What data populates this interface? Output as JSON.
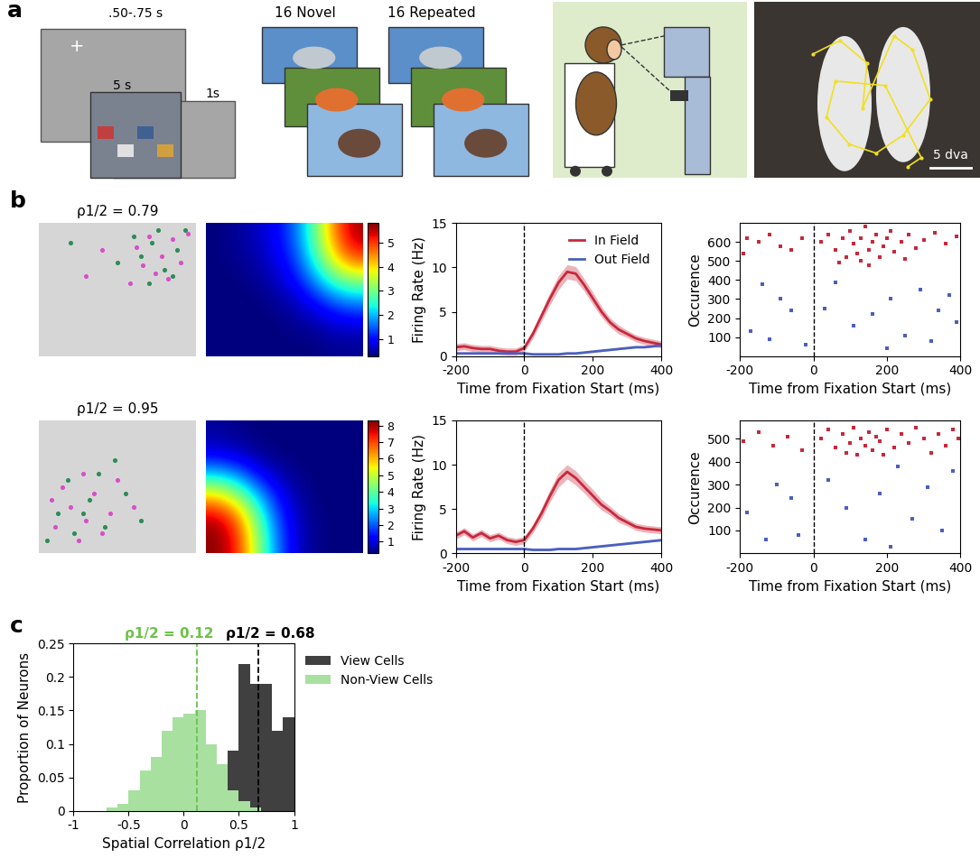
{
  "panel_a": {
    "label": "a",
    "fixation_cross": "+",
    "durations": [
      ".50-.75 s",
      "5 s",
      "1s"
    ],
    "sets": [
      "16 Novel",
      "16 Repeated"
    ],
    "scale_bar": "5 dva"
  },
  "chart_data": [
    {
      "type": "scatter",
      "panel_label": "b",
      "title": "ρ1/2 = 0.79",
      "tick_labels": false,
      "xlim": [
        0,
        1
      ],
      "ylim": [
        0,
        1
      ],
      "series": [
        {
          "color": "#d84fc8",
          "x": [
            0.62,
            0.7,
            0.78,
            0.85,
            0.9,
            0.74,
            0.66,
            0.95,
            0.58,
            0.82,
            0.4,
            0.3
          ],
          "y": [
            0.82,
            0.9,
            0.75,
            0.88,
            0.7,
            0.62,
            0.68,
            0.92,
            0.55,
            0.58,
            0.8,
            0.6
          ]
        },
        {
          "color": "#2e8b57",
          "x": [
            0.65,
            0.72,
            0.8,
            0.88,
            0.93,
            0.7,
            0.6,
            0.85,
            0.76,
            0.5,
            0.2
          ],
          "y": [
            0.75,
            0.85,
            0.65,
            0.8,
            0.95,
            0.55,
            0.9,
            0.6,
            0.95,
            0.7,
            0.85
          ]
        }
      ]
    },
    {
      "type": "heatmap",
      "tick_labels": false,
      "cells": [
        [
          0.3,
          0.4,
          0.6,
          0.9,
          1.5,
          2.8,
          4.5,
          5.6
        ],
        [
          0.3,
          0.4,
          0.5,
          0.8,
          1.3,
          2.5,
          4.0,
          5.0
        ],
        [
          0.3,
          0.3,
          0.4,
          0.6,
          1.0,
          1.8,
          2.8,
          3.3
        ],
        [
          0.3,
          0.3,
          0.3,
          0.4,
          0.6,
          1.0,
          1.5,
          1.8
        ],
        [
          0.3,
          0.3,
          0.3,
          0.3,
          0.4,
          0.5,
          0.7,
          0.8
        ],
        [
          0.3,
          0.3,
          0.3,
          0.3,
          0.3,
          0.3,
          0.4,
          0.4
        ]
      ],
      "colorbar_range": [
        0.3,
        5.8
      ],
      "colorbar_ticks": [
        1,
        2,
        3,
        4,
        5
      ]
    },
    {
      "type": "line",
      "xlabel": "Time from Fixation Start (ms)",
      "ylabel": "Firing Rate (Hz)",
      "x": [
        -200,
        -175,
        -150,
        -125,
        -100,
        -75,
        -50,
        -25,
        0,
        25,
        50,
        75,
        100,
        125,
        150,
        175,
        200,
        225,
        250,
        275,
        300,
        325,
        350,
        375,
        400
      ],
      "series": [
        {
          "name": "In Field",
          "color": "#c8283c",
          "values": [
            1.0,
            1.1,
            0.9,
            0.8,
            0.8,
            0.6,
            0.5,
            0.5,
            0.9,
            2.5,
            4.5,
            6.5,
            8.3,
            9.5,
            9.3,
            8.0,
            6.5,
            5.0,
            3.8,
            3.0,
            2.5,
            2.0,
            1.7,
            1.5,
            1.3
          ],
          "error": [
            0.4,
            0.4,
            0.4,
            0.4,
            0.4,
            0.4,
            0.4,
            0.4,
            0.4,
            0.5,
            0.6,
            0.7,
            0.8,
            0.8,
            0.8,
            0.7,
            0.7,
            0.6,
            0.5,
            0.5,
            0.4,
            0.4,
            0.4,
            0.4,
            0.4
          ]
        },
        {
          "name": "Out Field",
          "color": "#4b5fc0",
          "values": [
            0.3,
            0.3,
            0.3,
            0.3,
            0.3,
            0.3,
            0.3,
            0.3,
            0.3,
            0.2,
            0.2,
            0.2,
            0.2,
            0.3,
            0.3,
            0.4,
            0.5,
            0.6,
            0.7,
            0.8,
            0.9,
            1.0,
            1.0,
            1.1,
            1.2
          ],
          "error": [
            0.1,
            0.1,
            0.1,
            0.1,
            0.1,
            0.1,
            0.1,
            0.1,
            0.1,
            0.1,
            0.1,
            0.1,
            0.1,
            0.1,
            0.1,
            0.1,
            0.1,
            0.1,
            0.1,
            0.1,
            0.1,
            0.1,
            0.1,
            0.1,
            0.1
          ]
        }
      ],
      "fixation_start": 0,
      "xlim": [
        -200,
        400
      ],
      "xticks": [
        -200,
        0,
        200,
        400
      ],
      "ylim": [
        0,
        15
      ],
      "yticks": [
        0,
        5,
        10,
        15
      ],
      "legend": "upper right"
    },
    {
      "type": "raster",
      "xlabel": "Time from Fixation Start (ms)",
      "ylabel": "Occurence",
      "series": [
        {
          "name": "In Field",
          "color": "#c8283c",
          "x": [
            -180,
            -150,
            -120,
            -90,
            -60,
            -30,
            -190,
            20,
            40,
            60,
            80,
            100,
            110,
            120,
            130,
            140,
            150,
            160,
            170,
            180,
            190,
            200,
            210,
            220,
            240,
            260,
            280,
            300,
            330,
            360,
            390,
            130,
            90,
            250,
            150,
            70
          ],
          "y": [
            620,
            600,
            640,
            580,
            560,
            620,
            540,
            600,
            640,
            560,
            620,
            660,
            590,
            540,
            620,
            680,
            560,
            600,
            640,
            520,
            580,
            620,
            660,
            550,
            600,
            640,
            570,
            610,
            650,
            590,
            630,
            500,
            520,
            510,
            480,
            490
          ]
        },
        {
          "name": "Out Field",
          "color": "#4b5fc0",
          "x": [
            -170,
            -120,
            -60,
            -20,
            30,
            60,
            110,
            160,
            210,
            250,
            290,
            320,
            340,
            370,
            390,
            -140,
            -90,
            200
          ],
          "y": [
            130,
            90,
            240,
            60,
            250,
            390,
            160,
            220,
            300,
            110,
            350,
            80,
            240,
            320,
            180,
            380,
            300,
            40
          ]
        }
      ],
      "fixation_start": 0,
      "xlim": [
        -200,
        400
      ],
      "xticks": [
        -200,
        0,
        200,
        400
      ],
      "ylim": [
        0,
        700
      ],
      "yticks": [
        100,
        200,
        300,
        400,
        500,
        600
      ]
    },
    {
      "type": "scatter",
      "title": "ρ1/2 = 0.95",
      "tick_labels": false,
      "xlim": [
        0,
        1
      ],
      "ylim": [
        0,
        1
      ],
      "series": [
        {
          "color": "#d84fc8",
          "x": [
            0.1,
            0.2,
            0.3,
            0.15,
            0.35,
            0.25,
            0.45,
            0.5,
            0.4,
            0.08,
            0.6,
            0.28
          ],
          "y": [
            0.2,
            0.35,
            0.25,
            0.5,
            0.45,
            0.1,
            0.3,
            0.55,
            0.15,
            0.4,
            0.35,
            0.6
          ]
        },
        {
          "color": "#2e8b57",
          "x": [
            0.12,
            0.22,
            0.32,
            0.42,
            0.18,
            0.38,
            0.05,
            0.55,
            0.28,
            0.48,
            0.65
          ],
          "y": [
            0.3,
            0.15,
            0.4,
            0.2,
            0.55,
            0.6,
            0.1,
            0.45,
            0.3,
            0.7,
            0.25
          ]
        }
      ]
    },
    {
      "type": "heatmap",
      "tick_labels": false,
      "cells": [
        [
          0.5,
          0.4,
          0.3,
          0.3,
          0.3,
          0.3,
          0.3,
          0.3
        ],
        [
          1.0,
          0.8,
          0.5,
          0.3,
          0.3,
          0.3,
          0.3,
          0.3
        ],
        [
          3.0,
          2.5,
          1.5,
          0.8,
          0.4,
          0.3,
          0.3,
          0.3
        ],
        [
          6.0,
          5.0,
          3.2,
          1.6,
          0.7,
          0.3,
          0.3,
          0.3
        ],
        [
          8.0,
          7.0,
          4.5,
          2.2,
          0.9,
          0.4,
          0.3,
          0.3
        ],
        [
          8.2,
          7.5,
          5.0,
          2.5,
          1.0,
          0.4,
          0.3,
          0.3
        ]
      ],
      "colorbar_range": [
        0.3,
        8.3
      ],
      "colorbar_ticks": [
        1,
        2,
        3,
        4,
        5,
        6,
        7,
        8
      ]
    },
    {
      "type": "line",
      "xlabel": "Time from Fixation Start (ms)",
      "ylabel": "Firing Rate (Hz)",
      "x": [
        -200,
        -175,
        -150,
        -125,
        -100,
        -75,
        -50,
        -25,
        0,
        25,
        50,
        75,
        100,
        125,
        150,
        175,
        200,
        225,
        250,
        275,
        300,
        325,
        350,
        375,
        400
      ],
      "series": [
        {
          "name": "In Field",
          "color": "#c8283c",
          "values": [
            2.0,
            2.5,
            1.8,
            2.3,
            1.7,
            2.0,
            1.5,
            1.3,
            1.5,
            2.8,
            4.5,
            6.5,
            8.3,
            9.2,
            8.5,
            7.5,
            6.5,
            5.5,
            4.8,
            4.0,
            3.5,
            3.0,
            2.8,
            2.7,
            2.6
          ],
          "error": [
            0.4,
            0.4,
            0.4,
            0.4,
            0.4,
            0.4,
            0.4,
            0.4,
            0.4,
            0.5,
            0.6,
            0.7,
            0.8,
            0.8,
            0.8,
            0.7,
            0.7,
            0.6,
            0.5,
            0.5,
            0.4,
            0.4,
            0.4,
            0.4,
            0.4
          ]
        },
        {
          "name": "Out Field",
          "color": "#4b5fc0",
          "values": [
            0.5,
            0.5,
            0.5,
            0.5,
            0.5,
            0.5,
            0.5,
            0.5,
            0.5,
            0.4,
            0.4,
            0.4,
            0.5,
            0.5,
            0.5,
            0.6,
            0.7,
            0.8,
            0.9,
            1.0,
            1.1,
            1.2,
            1.3,
            1.4,
            1.5
          ],
          "error": [
            0.1,
            0.1,
            0.1,
            0.1,
            0.1,
            0.1,
            0.1,
            0.1,
            0.1,
            0.1,
            0.1,
            0.1,
            0.1,
            0.1,
            0.1,
            0.1,
            0.1,
            0.1,
            0.1,
            0.1,
            0.1,
            0.1,
            0.1,
            0.1,
            0.1
          ]
        }
      ],
      "fixation_start": 0,
      "xlim": [
        -200,
        400
      ],
      "xticks": [
        -200,
        0,
        200,
        400
      ],
      "ylim": [
        0,
        15
      ],
      "yticks": [
        0,
        5,
        10,
        15
      ]
    },
    {
      "type": "raster",
      "xlabel": "Time from Fixation Start (ms)",
      "ylabel": "Occurence",
      "series": [
        {
          "name": "In Field",
          "color": "#c8283c",
          "x": [
            -190,
            -150,
            -110,
            -70,
            -30,
            20,
            40,
            60,
            80,
            100,
            110,
            120,
            130,
            140,
            150,
            160,
            170,
            180,
            200,
            220,
            240,
            260,
            280,
            300,
            320,
            340,
            360,
            380,
            395,
            90,
            190
          ],
          "y": [
            490,
            530,
            470,
            510,
            450,
            500,
            540,
            460,
            520,
            480,
            550,
            430,
            500,
            470,
            530,
            450,
            510,
            490,
            540,
            460,
            520,
            480,
            550,
            500,
            440,
            520,
            470,
            540,
            500,
            440,
            430
          ]
        },
        {
          "name": "Out Field",
          "color": "#4b5fc0",
          "x": [
            -180,
            -100,
            -40,
            40,
            90,
            140,
            180,
            230,
            270,
            310,
            350,
            380,
            -130,
            -60,
            210
          ],
          "y": [
            180,
            300,
            80,
            320,
            200,
            60,
            260,
            380,
            150,
            290,
            100,
            360,
            60,
            240,
            30
          ]
        }
      ],
      "fixation_start": 0,
      "xlim": [
        -200,
        400
      ],
      "xticks": [
        -200,
        0,
        200,
        400
      ],
      "ylim": [
        0,
        580
      ],
      "yticks": [
        100,
        200,
        300,
        400,
        500
      ]
    },
    {
      "type": "histogram",
      "panel_label": "c",
      "xlabel": "Spatial Correlation ρ1/2",
      "ylabel": "Proportion of Neurons",
      "bins": [
        -1.0,
        -0.9,
        -0.8,
        -0.7,
        -0.6,
        -0.5,
        -0.4,
        -0.3,
        -0.2,
        -0.1,
        0.0,
        0.1,
        0.2,
        0.3,
        0.4,
        0.5,
        0.6,
        0.7,
        0.8,
        0.9,
        1.0
      ],
      "series": [
        {
          "name": "View Cells",
          "color": "#404040",
          "counts": [
            0,
            0,
            0,
            0,
            0,
            0,
            0,
            0,
            0,
            0,
            0,
            0,
            0,
            0.03,
            0.09,
            0.22,
            0.19,
            0.19,
            0.12,
            0.14
          ]
        },
        {
          "name": "Non-View Cells",
          "color": "#a8e0a0",
          "counts": [
            0,
            0,
            0,
            0.005,
            0.01,
            0.03,
            0.06,
            0.08,
            0.12,
            0.14,
            0.145,
            0.15,
            0.1,
            0.07,
            0.03,
            0.015,
            0.005,
            0,
            0,
            0
          ]
        }
      ],
      "medians": [
        {
          "value": 0.12,
          "label": "ρ1/2 = 0.12",
          "color": "#6cc24a"
        },
        {
          "value": 0.68,
          "label": "ρ1/2 = 0.68",
          "color": "#000000"
        }
      ],
      "xlim": [
        -1,
        1
      ],
      "xticks": [
        -1,
        -0.5,
        0,
        0.5,
        1
      ],
      "ylim": [
        0,
        0.25
      ],
      "yticks": [
        0,
        0.05,
        0.1,
        0.15,
        0.2,
        0.25
      ],
      "legend": "upper left"
    }
  ]
}
